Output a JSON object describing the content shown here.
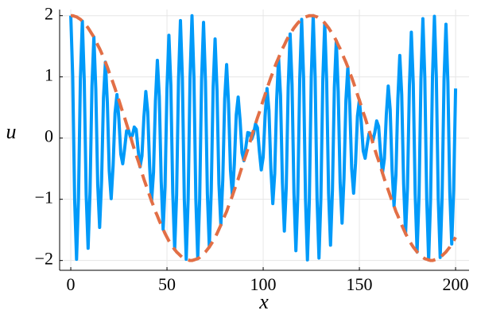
{
  "chart_data": {
    "type": "line",
    "xlabel": "x",
    "ylabel": "u",
    "x": [
      0,
      1,
      2,
      3,
      4,
      5,
      6,
      7,
      8,
      9,
      10,
      11,
      12,
      13,
      14,
      15,
      16,
      17,
      18,
      19,
      20,
      21,
      22,
      23,
      24,
      25,
      26,
      27,
      28,
      29,
      30,
      31,
      32,
      33,
      34,
      35,
      36,
      37,
      38,
      39,
      40,
      41,
      42,
      43,
      44,
      45,
      46,
      47,
      48,
      49,
      50,
      51,
      52,
      53,
      54,
      55,
      56,
      57,
      58,
      59,
      60,
      61,
      62,
      63,
      64,
      65,
      66,
      67,
      68,
      69,
      70,
      71,
      72,
      73,
      74,
      75,
      76,
      77,
      78,
      79,
      80,
      81,
      82,
      83,
      84,
      85,
      86,
      87,
      88,
      89,
      90,
      91,
      92,
      93,
      94,
      95,
      96,
      97,
      98,
      99,
      100,
      101,
      102,
      103,
      104,
      105,
      106,
      107,
      108,
      109,
      110,
      111,
      112,
      113,
      114,
      115,
      116,
      117,
      118,
      119,
      120,
      121,
      122,
      123,
      124,
      125,
      126,
      127,
      128,
      129,
      130,
      131,
      132,
      133,
      134,
      135,
      136,
      137,
      138,
      139,
      140,
      141,
      142,
      143,
      144,
      145,
      146,
      147,
      148,
      149,
      150,
      151,
      152,
      153,
      154,
      155,
      156,
      157,
      158,
      159,
      160,
      161,
      162,
      163,
      164,
      165,
      166,
      167,
      168,
      169,
      170,
      171,
      172,
      173,
      174,
      175,
      176,
      177,
      178,
      179,
      180,
      181,
      182,
      183,
      184,
      185,
      186,
      187,
      188,
      189,
      190,
      191,
      192,
      193,
      194,
      195,
      196,
      197,
      198,
      199,
      200
    ],
    "series": [
      {
        "color": "#009af9",
        "dashed": false,
        "values": [
          2,
          1.0,
          -1.0,
          -1.98,
          -0.98,
          0.97,
          1.91,
          0.94,
          -0.92,
          -1.8,
          -0.88,
          0.85,
          1.65,
          0.8,
          -0.76,
          -1.46,
          -0.7,
          0.66,
          1.24,
          0.58,
          -0.54,
          -0.99,
          -0.45,
          0.41,
          0.71,
          0.31,
          -0.26,
          -0.42,
          -0.17,
          0.12,
          0.13,
          0.02,
          0.04,
          0.18,
          0.14,
          -0.19,
          -0.47,
          -0.29,
          0.34,
          0.76,
          0.43,
          -0.47,
          -1.03,
          -0.56,
          0.6,
          1.27,
          0.68,
          -0.71,
          -1.49,
          -0.78,
          0.81,
          1.68,
          0.87,
          -0.89,
          -1.82,
          -0.93,
          0.95,
          1.92,
          0.98,
          -0.99,
          -1.98,
          -1.0,
          1.0,
          2.0,
          1.0,
          -0.99,
          -1.97,
          -0.98,
          0.96,
          1.89,
          0.93,
          -0.91,
          -1.78,
          -0.87,
          0.84,
          1.62,
          0.78,
          -0.75,
          -1.42,
          -0.68,
          0.64,
          1.2,
          0.56,
          -0.52,
          -0.94,
          -0.43,
          0.38,
          0.67,
          0.29,
          -0.24,
          -0.37,
          -0.14,
          0.09,
          0.08,
          -0.02,
          0.07,
          0.23,
          0.17,
          -0.21,
          -0.52,
          -0.31,
          0.36,
          0.81,
          0.45,
          -0.5,
          -1.07,
          -0.58,
          0.62,
          1.31,
          0.7,
          -0.73,
          -1.52,
          -0.8,
          0.83,
          1.7,
          0.88,
          -0.9,
          -1.84,
          -0.94,
          0.96,
          1.94,
          0.98,
          -0.99,
          -1.99,
          -1.0,
          1.0,
          2.0,
          1.0,
          -0.99,
          -1.96,
          -0.97,
          0.96,
          1.88,
          0.92,
          -0.9,
          -1.75,
          -0.85,
          0.83,
          1.59,
          0.76,
          -0.73,
          -1.39,
          -0.66,
          0.62,
          1.16,
          0.54,
          -0.5,
          -0.9,
          -0.41,
          0.36,
          0.62,
          0.26,
          -0.21,
          -0.33,
          -0.12,
          0.07,
          0.03,
          -0.04,
          0.09,
          0.28,
          0.19,
          -0.24,
          -0.57,
          -0.34,
          0.38,
          0.85,
          0.47,
          -0.52,
          -1.11,
          -0.6,
          0.64,
          1.35,
          0.71,
          -0.75,
          -1.56,
          -0.81,
          0.84,
          1.73,
          0.89,
          -0.91,
          -1.86,
          -0.95,
          0.96,
          1.95,
          0.99,
          -0.99,
          -1.99,
          -1.0,
          1.0,
          1.99,
          0.99,
          -0.99,
          -1.95,
          -0.96,
          0.95,
          1.86,
          0.91,
          -0.89,
          -1.73,
          -0.84,
          0.81
        ]
      },
      {
        "color": "#e26f46",
        "dashed": true,
        "values": [
          2,
          2.0,
          1.99,
          1.98,
          1.96,
          1.94,
          1.91,
          1.88,
          1.84,
          1.8,
          1.75,
          1.7,
          1.65,
          1.59,
          1.52,
          1.46,
          1.39,
          1.31,
          1.24,
          1.16,
          1.07,
          0.99,
          0.9,
          0.81,
          0.71,
          0.62,
          0.52,
          0.42,
          0.33,
          0.23,
          0.13,
          0.03,
          -0.08,
          -0.18,
          -0.28,
          -0.37,
          -0.47,
          -0.57,
          -0.67,
          -0.76,
          -0.85,
          -0.94,
          -1.03,
          -1.11,
          -1.2,
          -1.27,
          -1.35,
          -1.42,
          -1.49,
          -1.56,
          -1.62,
          -1.68,
          -1.73,
          -1.78,
          -1.82,
          -1.86,
          -1.89,
          -1.92,
          -1.95,
          -1.97,
          -1.98,
          -1.99,
          -2.0,
          -2.0,
          -1.99,
          -1.98,
          -1.97,
          -1.95,
          -1.92,
          -1.89,
          -1.86,
          -1.82,
          -1.78,
          -1.73,
          -1.68,
          -1.62,
          -1.56,
          -1.49,
          -1.42,
          -1.35,
          -1.27,
          -1.2,
          -1.11,
          -1.03,
          -0.94,
          -0.85,
          -0.76,
          -0.67,
          -0.57,
          -0.47,
          -0.37,
          -0.28,
          -0.18,
          -0.08,
          0.03,
          0.13,
          0.23,
          0.33,
          0.42,
          0.52,
          0.62,
          0.71,
          0.81,
          0.9,
          0.99,
          1.07,
          1.16,
          1.24,
          1.31,
          1.39,
          1.46,
          1.52,
          1.59,
          1.65,
          1.7,
          1.75,
          1.8,
          1.84,
          1.88,
          1.91,
          1.94,
          1.96,
          1.98,
          1.99,
          2.0,
          2,
          2.0,
          1.99,
          1.98,
          1.96,
          1.94,
          1.91,
          1.88,
          1.84,
          1.8,
          1.75,
          1.7,
          1.65,
          1.59,
          1.52,
          1.46,
          1.39,
          1.31,
          1.24,
          1.16,
          1.07,
          0.99,
          0.9,
          0.81,
          0.71,
          0.62,
          0.52,
          0.42,
          0.33,
          0.23,
          0.13,
          0.03,
          -0.08,
          -0.18,
          -0.28,
          -0.37,
          -0.47,
          -0.57,
          -0.67,
          -0.76,
          -0.85,
          -0.94,
          -1.03,
          -1.11,
          -1.2,
          -1.27,
          -1.35,
          -1.42,
          -1.49,
          -1.56,
          -1.62,
          -1.68,
          -1.73,
          -1.78,
          -1.82,
          -1.86,
          -1.89,
          -1.92,
          -1.95,
          -1.97,
          -1.98,
          -1.99,
          -2.0,
          -2.0,
          -1.99,
          -1.98,
          -1.97,
          -1.95,
          -1.92,
          -1.89,
          -1.86,
          -1.82,
          -1.78,
          -1.73,
          -1.68,
          -1.62
        ]
      }
    ],
    "xlim": [
      -5.8,
      207
    ],
    "ylim": [
      -2.16,
      2.1
    ],
    "xticks": [
      0,
      50,
      100,
      150,
      200
    ],
    "yticks": [
      {
        "value": -2,
        "label": "−2"
      },
      {
        "value": -1,
        "label": "−1"
      },
      0,
      1,
      2
    ],
    "grid": true
  }
}
